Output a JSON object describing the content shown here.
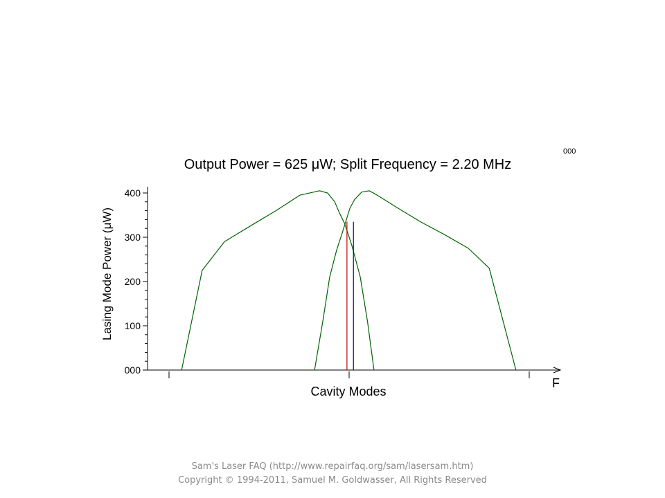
{
  "chart_data": {
    "type": "line",
    "title": "Output Power = 625 μW; Split Frequency = 2.20 MHz",
    "corner_label": "000",
    "xlabel": "Cavity Modes",
    "x_axis_letter": "F",
    "ylabel": "Lasing Mode Power (μW)",
    "ylim": [
      0,
      400
    ],
    "xlim": [
      0,
      100
    ],
    "yticks": [
      {
        "value": 0,
        "label": "000"
      },
      {
        "value": 100,
        "label": "100"
      },
      {
        "value": 200,
        "label": "200"
      },
      {
        "value": 300,
        "label": "300"
      },
      {
        "value": 400,
        "label": "400"
      }
    ],
    "xticks": [
      0,
      50,
      100
    ],
    "grid": false,
    "colors": {
      "curve": "#006400",
      "red_line": "#cc0000",
      "blue_line": "#0000cc",
      "axis": "#000000"
    },
    "series": [
      {
        "x": [
          3.5,
          9.2,
          15.4,
          23.5,
          29.7,
          36.3,
          41.8,
          44.0,
          46.0,
          47.3,
          48.8,
          50.8,
          53.1,
          55.1,
          56.9
        ],
        "y": [
          0,
          225,
          290,
          330,
          360,
          395,
          405,
          400,
          380,
          355,
          330,
          280,
          210,
          110,
          0
        ]
      },
      {
        "x": [
          40.4,
          42.7,
          44.6,
          46.5,
          48.1,
          50.2,
          51.5,
          53.5,
          55.6,
          57.8,
          63.7,
          69.8,
          76.7,
          83.1,
          88.9,
          96.3
        ],
        "y": [
          0,
          110,
          210,
          270,
          310,
          365,
          385,
          402,
          405,
          395,
          365,
          335,
          305,
          275,
          230,
          0
        ]
      }
    ],
    "vertical_markers": [
      {
        "color": "red",
        "x": 49.4,
        "y": 335
      },
      {
        "color": "blue",
        "x": 51.2,
        "y": 335
      }
    ]
  },
  "footer": {
    "line1": "Sam's Laser FAQ (http://www.repairfaq.org/sam/lasersam.htm)",
    "line2": "Copyright © 1994-2011,  Samuel  M.  Goldwasser, All Rights Reserved"
  }
}
